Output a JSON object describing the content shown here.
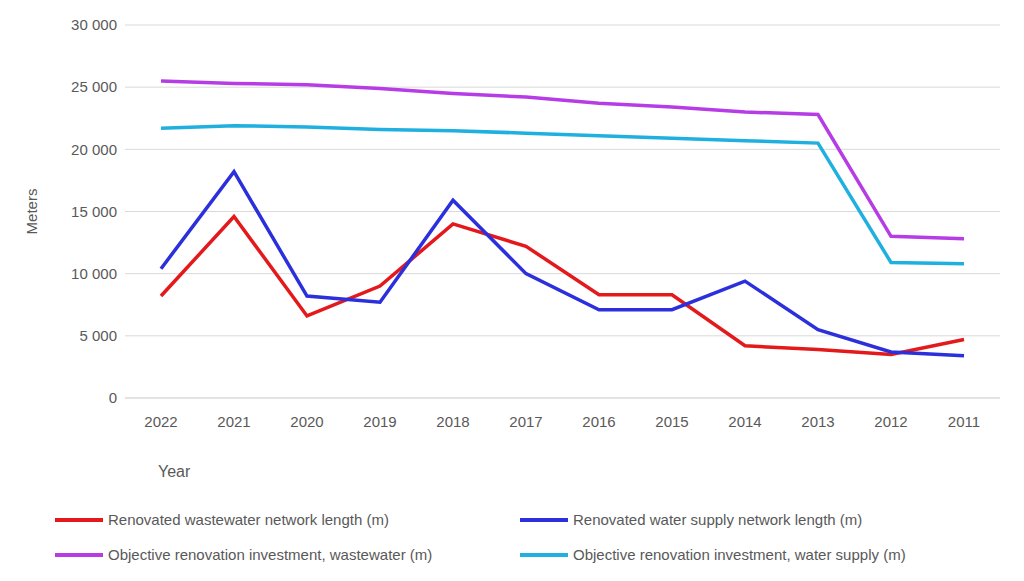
{
  "chart_data": {
    "type": "line",
    "x_label": "Year",
    "y_label": "Meters",
    "categories": [
      "2022",
      "2021",
      "2020",
      "2019",
      "2018",
      "2017",
      "2016",
      "2015",
      "2014",
      "2013",
      "2012",
      "2011"
    ],
    "ylim": [
      0,
      30000
    ],
    "yticks": [
      0,
      {
        "value": 5000,
        "label": "5 000"
      },
      {
        "value": 10000,
        "label": "10 000"
      },
      {
        "value": 15000,
        "label": "15 000"
      },
      {
        "value": 20000,
        "label": "20 000"
      },
      {
        "value": 25000,
        "label": "25 000"
      },
      {
        "value": 30000,
        "label": "30 000"
      }
    ],
    "grid": true,
    "legend": "bottom",
    "series": [
      {
        "name": "Renovated wastewater network length (m)",
        "color": "#e3191c",
        "values": [
          8200,
          14600,
          6600,
          9000,
          14000,
          12200,
          8300,
          8300,
          4200,
          3900,
          3500,
          4700
        ]
      },
      {
        "name": "Renovated water supply network length (m)",
        "color": "#2b2fdc",
        "values": [
          10400,
          18200,
          8200,
          7700,
          15900,
          10000,
          7100,
          7100,
          9400,
          5500,
          3700,
          3400
        ]
      },
      {
        "name": "Objective renovation investment, wastewater (m)",
        "color": "#b63de6",
        "values": [
          25500,
          25300,
          25200,
          24900,
          24500,
          24200,
          23700,
          23400,
          23000,
          22800,
          13000,
          12800
        ]
      },
      {
        "name": "Objective renovation investment, water supply (m)",
        "color": "#1fb0e0",
        "values": [
          21700,
          21900,
          21800,
          21600,
          21500,
          21300,
          21100,
          20900,
          20700,
          20500,
          10900,
          10800
        ]
      }
    ]
  }
}
